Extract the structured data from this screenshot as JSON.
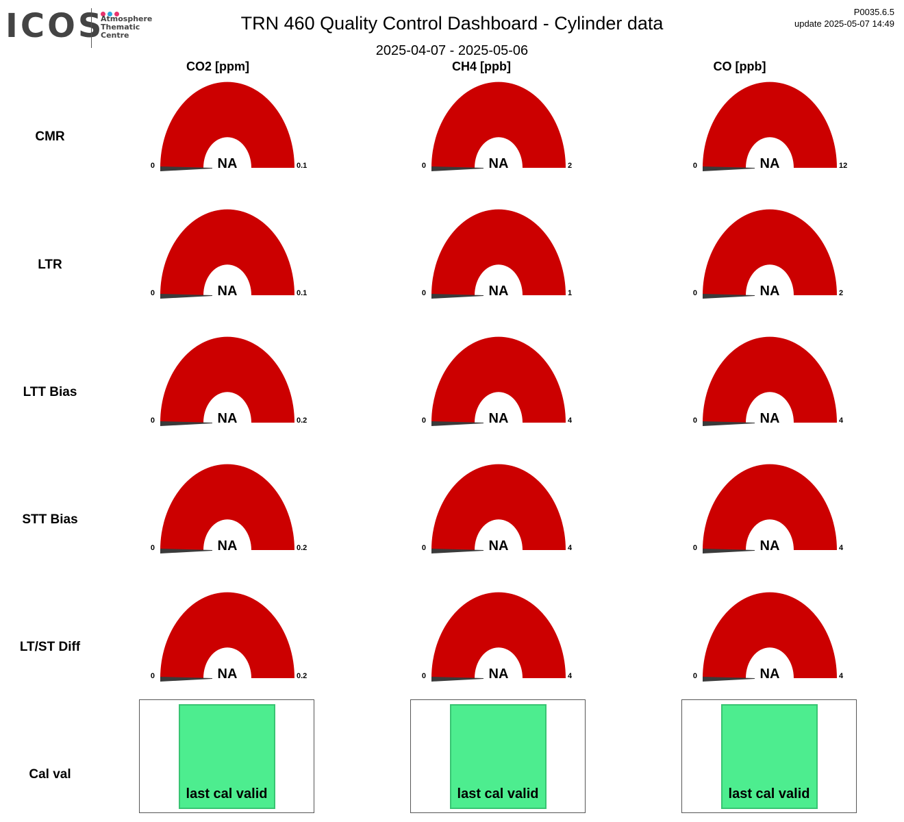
{
  "header": {
    "logo_text": "ICOS",
    "logo_sub": [
      "Atmosphere",
      "Thematic",
      "Centre"
    ],
    "logo_dot_colors": [
      "#e8336d",
      "#2aa8e0",
      "#e8336d"
    ],
    "title": "TRN 460 Quality Control Dashboard - Cylinder data",
    "date_range": "2025-04-07 - 2025-05-06",
    "version": "P0035.6.5",
    "update": "update  2025-05-07 14:49"
  },
  "colors": {
    "gauge_fill": "#cc0000",
    "needle": "#3a3a3a",
    "cal_valid": "#4ded8f"
  },
  "chart_data": {
    "type": "gauge",
    "columns": [
      "CO2 [ppm]",
      "CH4 [ppb]",
      "CO [ppb]"
    ],
    "rows": [
      "CMR",
      "LTR",
      "LTT Bias",
      "STT Bias",
      "LT/ST Diff"
    ],
    "gauges": [
      [
        {
          "min": "0",
          "max": "0.1",
          "value": "NA"
        },
        {
          "min": "0",
          "max": "2",
          "value": "NA"
        },
        {
          "min": "0",
          "max": "12",
          "value": "NA"
        }
      ],
      [
        {
          "min": "0",
          "max": "0.1",
          "value": "NA"
        },
        {
          "min": "0",
          "max": "1",
          "value": "NA"
        },
        {
          "min": "0",
          "max": "2",
          "value": "NA"
        }
      ],
      [
        {
          "min": "0",
          "max": "0.2",
          "value": "NA"
        },
        {
          "min": "0",
          "max": "4",
          "value": "NA"
        },
        {
          "min": "0",
          "max": "4",
          "value": "NA"
        }
      ],
      [
        {
          "min": "0",
          "max": "0.2",
          "value": "NA"
        },
        {
          "min": "0",
          "max": "4",
          "value": "NA"
        },
        {
          "min": "0",
          "max": "4",
          "value": "NA"
        }
      ],
      [
        {
          "min": "0",
          "max": "0.2",
          "value": "NA"
        },
        {
          "min": "0",
          "max": "4",
          "value": "NA"
        },
        {
          "min": "0",
          "max": "4",
          "value": "NA"
        }
      ]
    ],
    "cal_row_label": "Cal val",
    "cal_status": [
      "last cal valid",
      "last cal valid",
      "last cal valid"
    ]
  }
}
